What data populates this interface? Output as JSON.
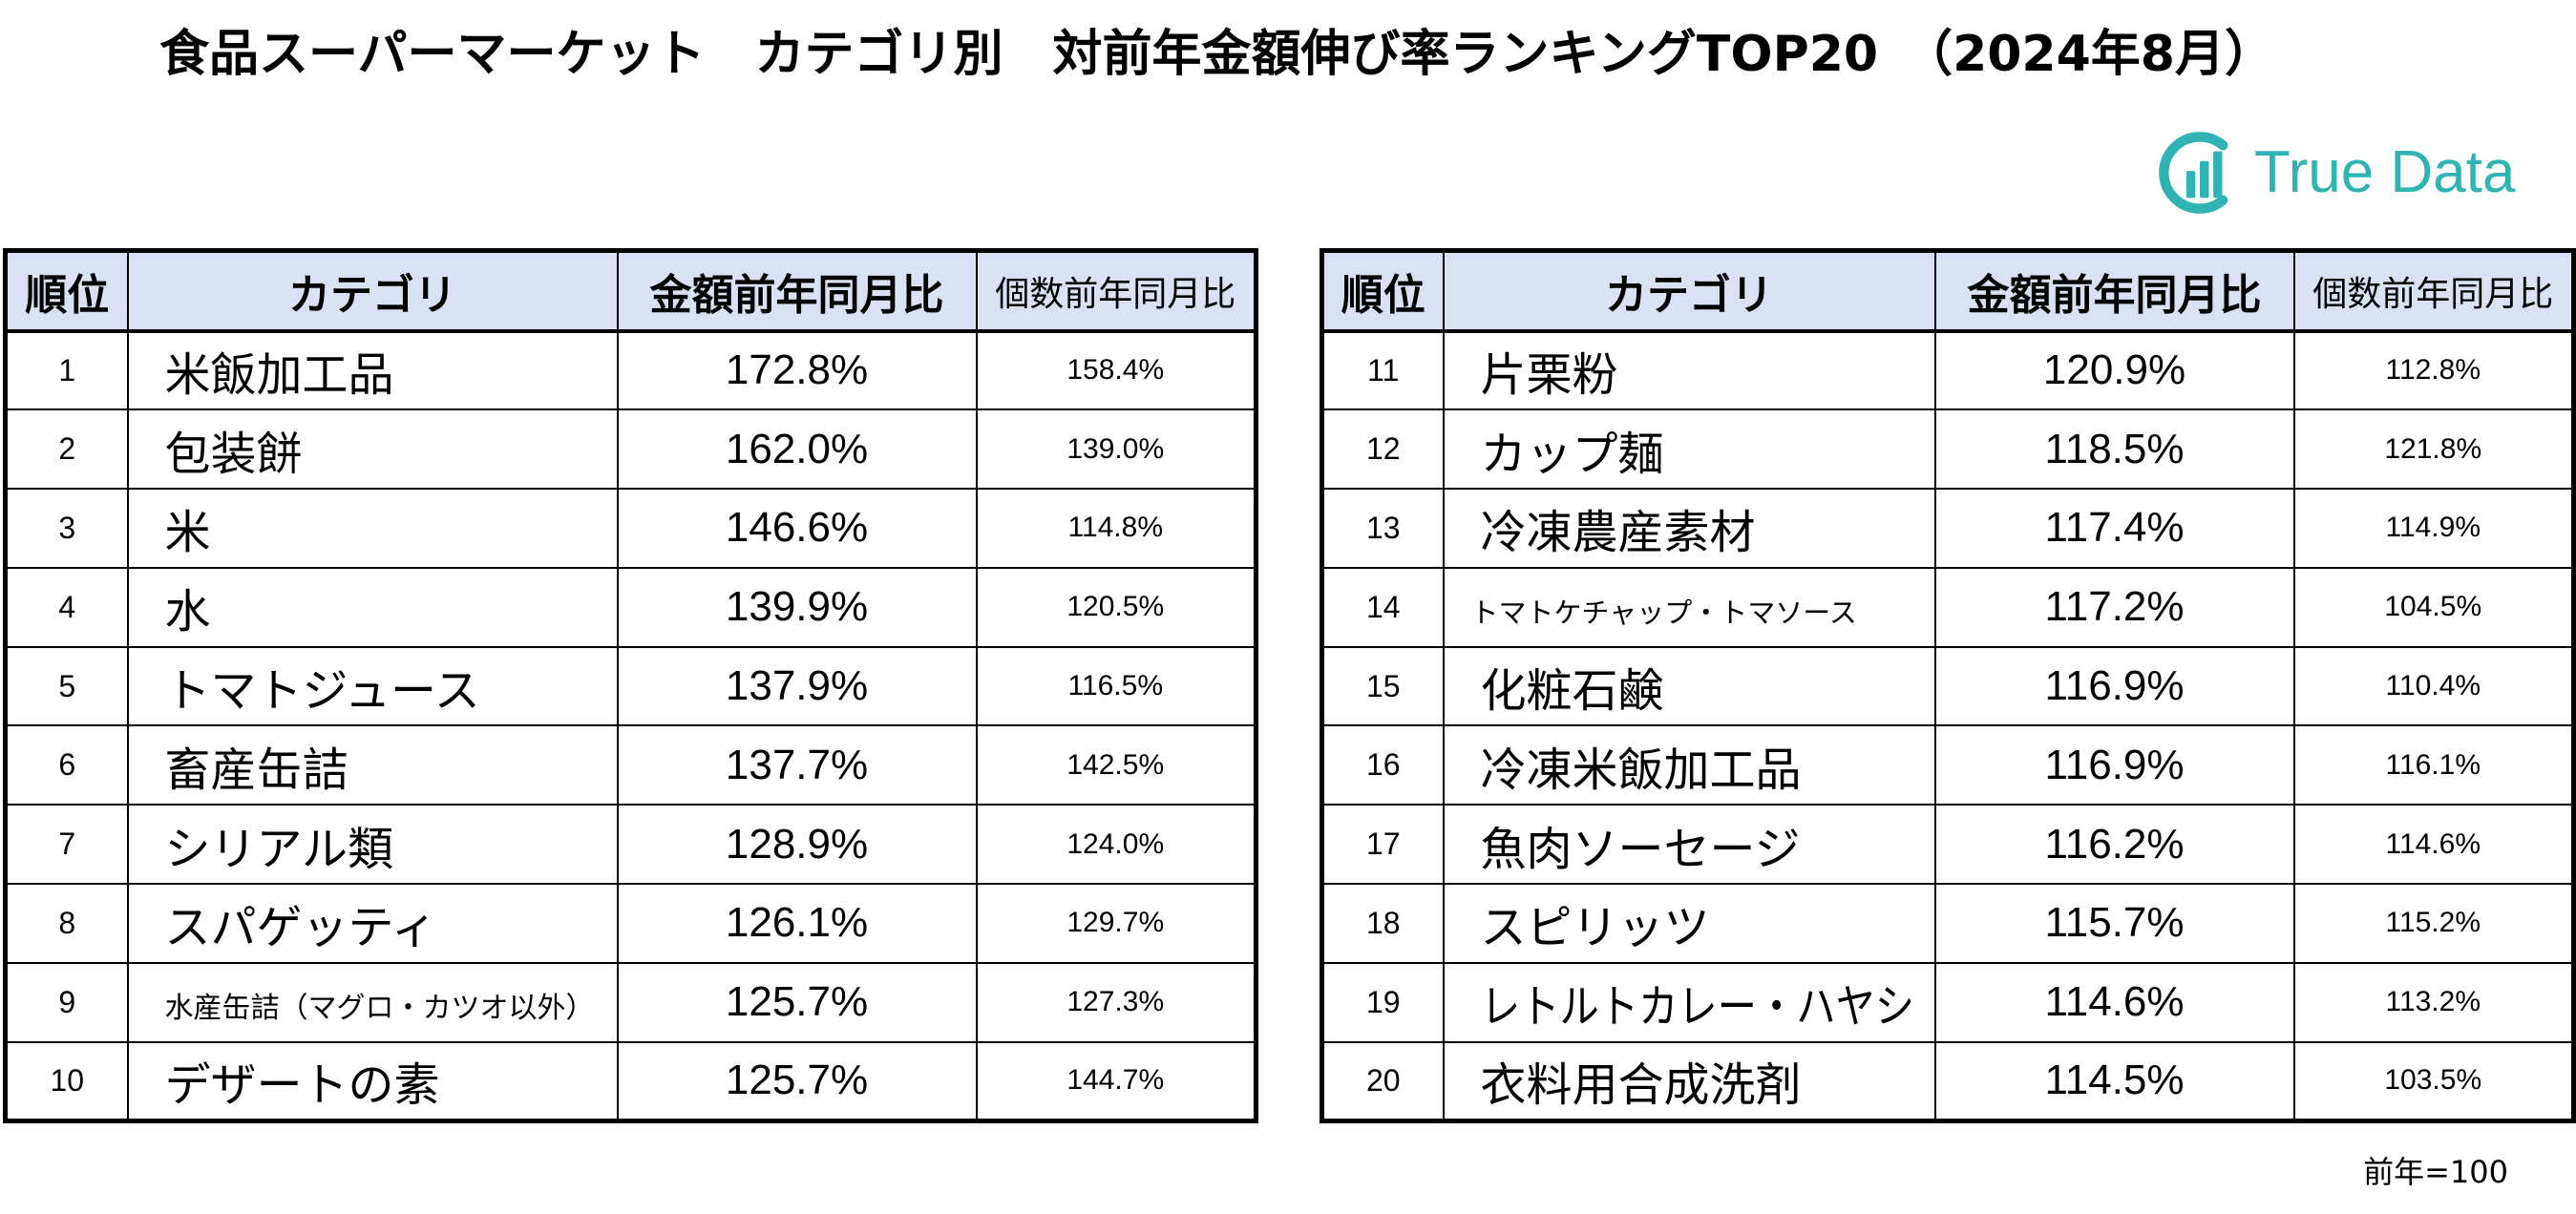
{
  "title": "食品スーパーマーケット　カテゴリ別　対前年金額伸び率ランキングTOP20　（2024年8月）",
  "logo": {
    "text": "True Data",
    "icon": "true-data-logo-icon"
  },
  "headers": {
    "rank": "順位",
    "category": "カテゴリ",
    "amount_yoy": "金額前年同月比",
    "quantity_yoy": "個数前年同月比"
  },
  "tables": [
    {
      "rows": [
        {
          "rank": 1,
          "category": "米飯加工品",
          "amount_yoy": "172.8%",
          "quantity_yoy": "158.4%"
        },
        {
          "rank": 2,
          "category": "包装餅",
          "amount_yoy": "162.0%",
          "quantity_yoy": "139.0%"
        },
        {
          "rank": 3,
          "category": "米",
          "amount_yoy": "146.6%",
          "quantity_yoy": "114.8%"
        },
        {
          "rank": 4,
          "category": "水",
          "amount_yoy": "139.9%",
          "quantity_yoy": "120.5%"
        },
        {
          "rank": 5,
          "category": "トマトジュース",
          "amount_yoy": "137.9%",
          "quantity_yoy": "116.5%"
        },
        {
          "rank": 6,
          "category": "畜産缶詰",
          "amount_yoy": "137.7%",
          "quantity_yoy": "142.5%"
        },
        {
          "rank": 7,
          "category": "シリアル類",
          "amount_yoy": "128.9%",
          "quantity_yoy": "124.0%"
        },
        {
          "rank": 8,
          "category": "スパゲッティ",
          "amount_yoy": "126.1%",
          "quantity_yoy": "129.7%"
        },
        {
          "rank": 9,
          "category": "水産缶詰（マグロ・カツオ以外）",
          "amount_yoy": "125.7%",
          "quantity_yoy": "127.3%"
        },
        {
          "rank": 10,
          "category": "デザートの素",
          "amount_yoy": "125.7%",
          "quantity_yoy": "144.7%"
        }
      ]
    },
    {
      "rows": [
        {
          "rank": 11,
          "category": "片栗粉",
          "amount_yoy": "120.9%",
          "quantity_yoy": "112.8%"
        },
        {
          "rank": 12,
          "category": "カップ麺",
          "amount_yoy": "118.5%",
          "quantity_yoy": "121.8%"
        },
        {
          "rank": 13,
          "category": "冷凍農産素材",
          "amount_yoy": "117.4%",
          "quantity_yoy": "114.9%"
        },
        {
          "rank": 14,
          "category": "トマトケチャップ・トマソース",
          "amount_yoy": "117.2%",
          "quantity_yoy": "104.5%"
        },
        {
          "rank": 15,
          "category": "化粧石鹸",
          "amount_yoy": "116.9%",
          "quantity_yoy": "110.4%"
        },
        {
          "rank": 16,
          "category": "冷凍米飯加工品",
          "amount_yoy": "116.9%",
          "quantity_yoy": "116.1%"
        },
        {
          "rank": 17,
          "category": "魚肉ソーセージ",
          "amount_yoy": "116.2%",
          "quantity_yoy": "114.6%"
        },
        {
          "rank": 18,
          "category": "スピリッツ",
          "amount_yoy": "115.7%",
          "quantity_yoy": "115.2%"
        },
        {
          "rank": 19,
          "category": "レトルトカレー・ハヤシ",
          "amount_yoy": "114.6%",
          "quantity_yoy": "113.2%"
        },
        {
          "rank": 20,
          "category": "衣料用合成洗剤",
          "amount_yoy": "114.5%",
          "quantity_yoy": "103.5%"
        }
      ]
    }
  ],
  "note": "前年=100",
  "colors": {
    "header_bg": "#d9e1f2",
    "brand": "#2fb3b3",
    "border": "#000000",
    "text": "#000000"
  }
}
